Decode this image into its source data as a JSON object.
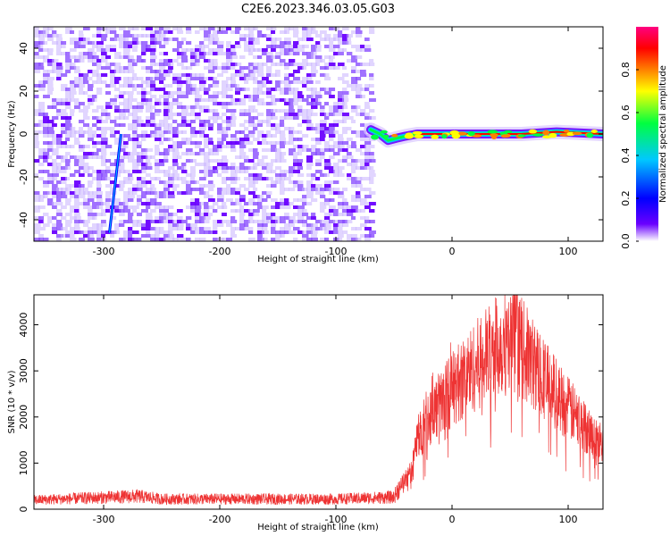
{
  "title": "C2E6.2023.346.03.05.G03",
  "chart_data": [
    {
      "type": "heatmap",
      "xlabel": "Height of straight line (km)",
      "ylabel": "Frequency (Hz)",
      "xlim": [
        -360,
        130
      ],
      "ylim": [
        -50,
        50
      ],
      "xticks": [
        -300,
        -200,
        -100,
        0,
        100
      ],
      "yticks": [
        -40,
        -20,
        0,
        20,
        40
      ],
      "colorbar": {
        "label": "Normalized spectral amplitude",
        "range": [
          0,
          1
        ],
        "ticks": [
          0.0,
          0.2,
          0.4,
          0.6,
          0.8
        ],
        "tick_labels": [
          "0.0",
          "0.2",
          "0.4",
          "0.6",
          "0.8"
        ],
        "colormap": [
          "#ffffff",
          "#6a00ff",
          "#0000ff",
          "#00c8ff",
          "#00ff40",
          "#ffff00",
          "#ff8000",
          "#ff0000",
          "#ff0080"
        ]
      },
      "noise_region": {
        "x": [
          -360,
          -70
        ],
        "amplitude": 0.1
      },
      "ridge": [
        {
          "x": -70,
          "y": 2
        },
        {
          "x": -62,
          "y": 0
        },
        {
          "x": -55,
          "y": -3
        },
        {
          "x": -48,
          "y": -2
        },
        {
          "x": -40,
          "y": -1
        },
        {
          "x": -30,
          "y": 0
        },
        {
          "x": -20,
          "y": 0
        },
        {
          "x": 0,
          "y": 0
        },
        {
          "x": 40,
          "y": 0
        },
        {
          "x": 60,
          "y": 0
        },
        {
          "x": 90,
          "y": 1
        },
        {
          "x": 130,
          "y": 0
        }
      ],
      "streak": [
        {
          "x": -295,
          "y": -46
        },
        {
          "x": -285,
          "y": 0
        }
      ]
    },
    {
      "type": "line",
      "xlabel": "Height of straight line (km)",
      "ylabel": "SNR (10 * v/v)",
      "xlim": [
        -360,
        130
      ],
      "ylim": [
        0,
        4650
      ],
      "xticks": [
        -300,
        -200,
        -100,
        0,
        100
      ],
      "yticks": [
        0,
        1000,
        2000,
        3000,
        4000
      ],
      "color": "#ee3333",
      "envelope": [
        {
          "x": -360,
          "y": 200
        },
        {
          "x": -270,
          "y": 280
        },
        {
          "x": -250,
          "y": 220
        },
        {
          "x": -100,
          "y": 220
        },
        {
          "x": -50,
          "y": 260
        },
        {
          "x": -45,
          "y": 500
        },
        {
          "x": -35,
          "y": 800
        },
        {
          "x": -30,
          "y": 1500
        },
        {
          "x": -20,
          "y": 2000
        },
        {
          "x": 0,
          "y": 2600
        },
        {
          "x": 20,
          "y": 3100
        },
        {
          "x": 40,
          "y": 3550
        },
        {
          "x": 55,
          "y": 3650
        },
        {
          "x": 70,
          "y": 3150
        },
        {
          "x": 90,
          "y": 2500
        },
        {
          "x": 110,
          "y": 1900
        },
        {
          "x": 130,
          "y": 1350
        }
      ]
    }
  ]
}
